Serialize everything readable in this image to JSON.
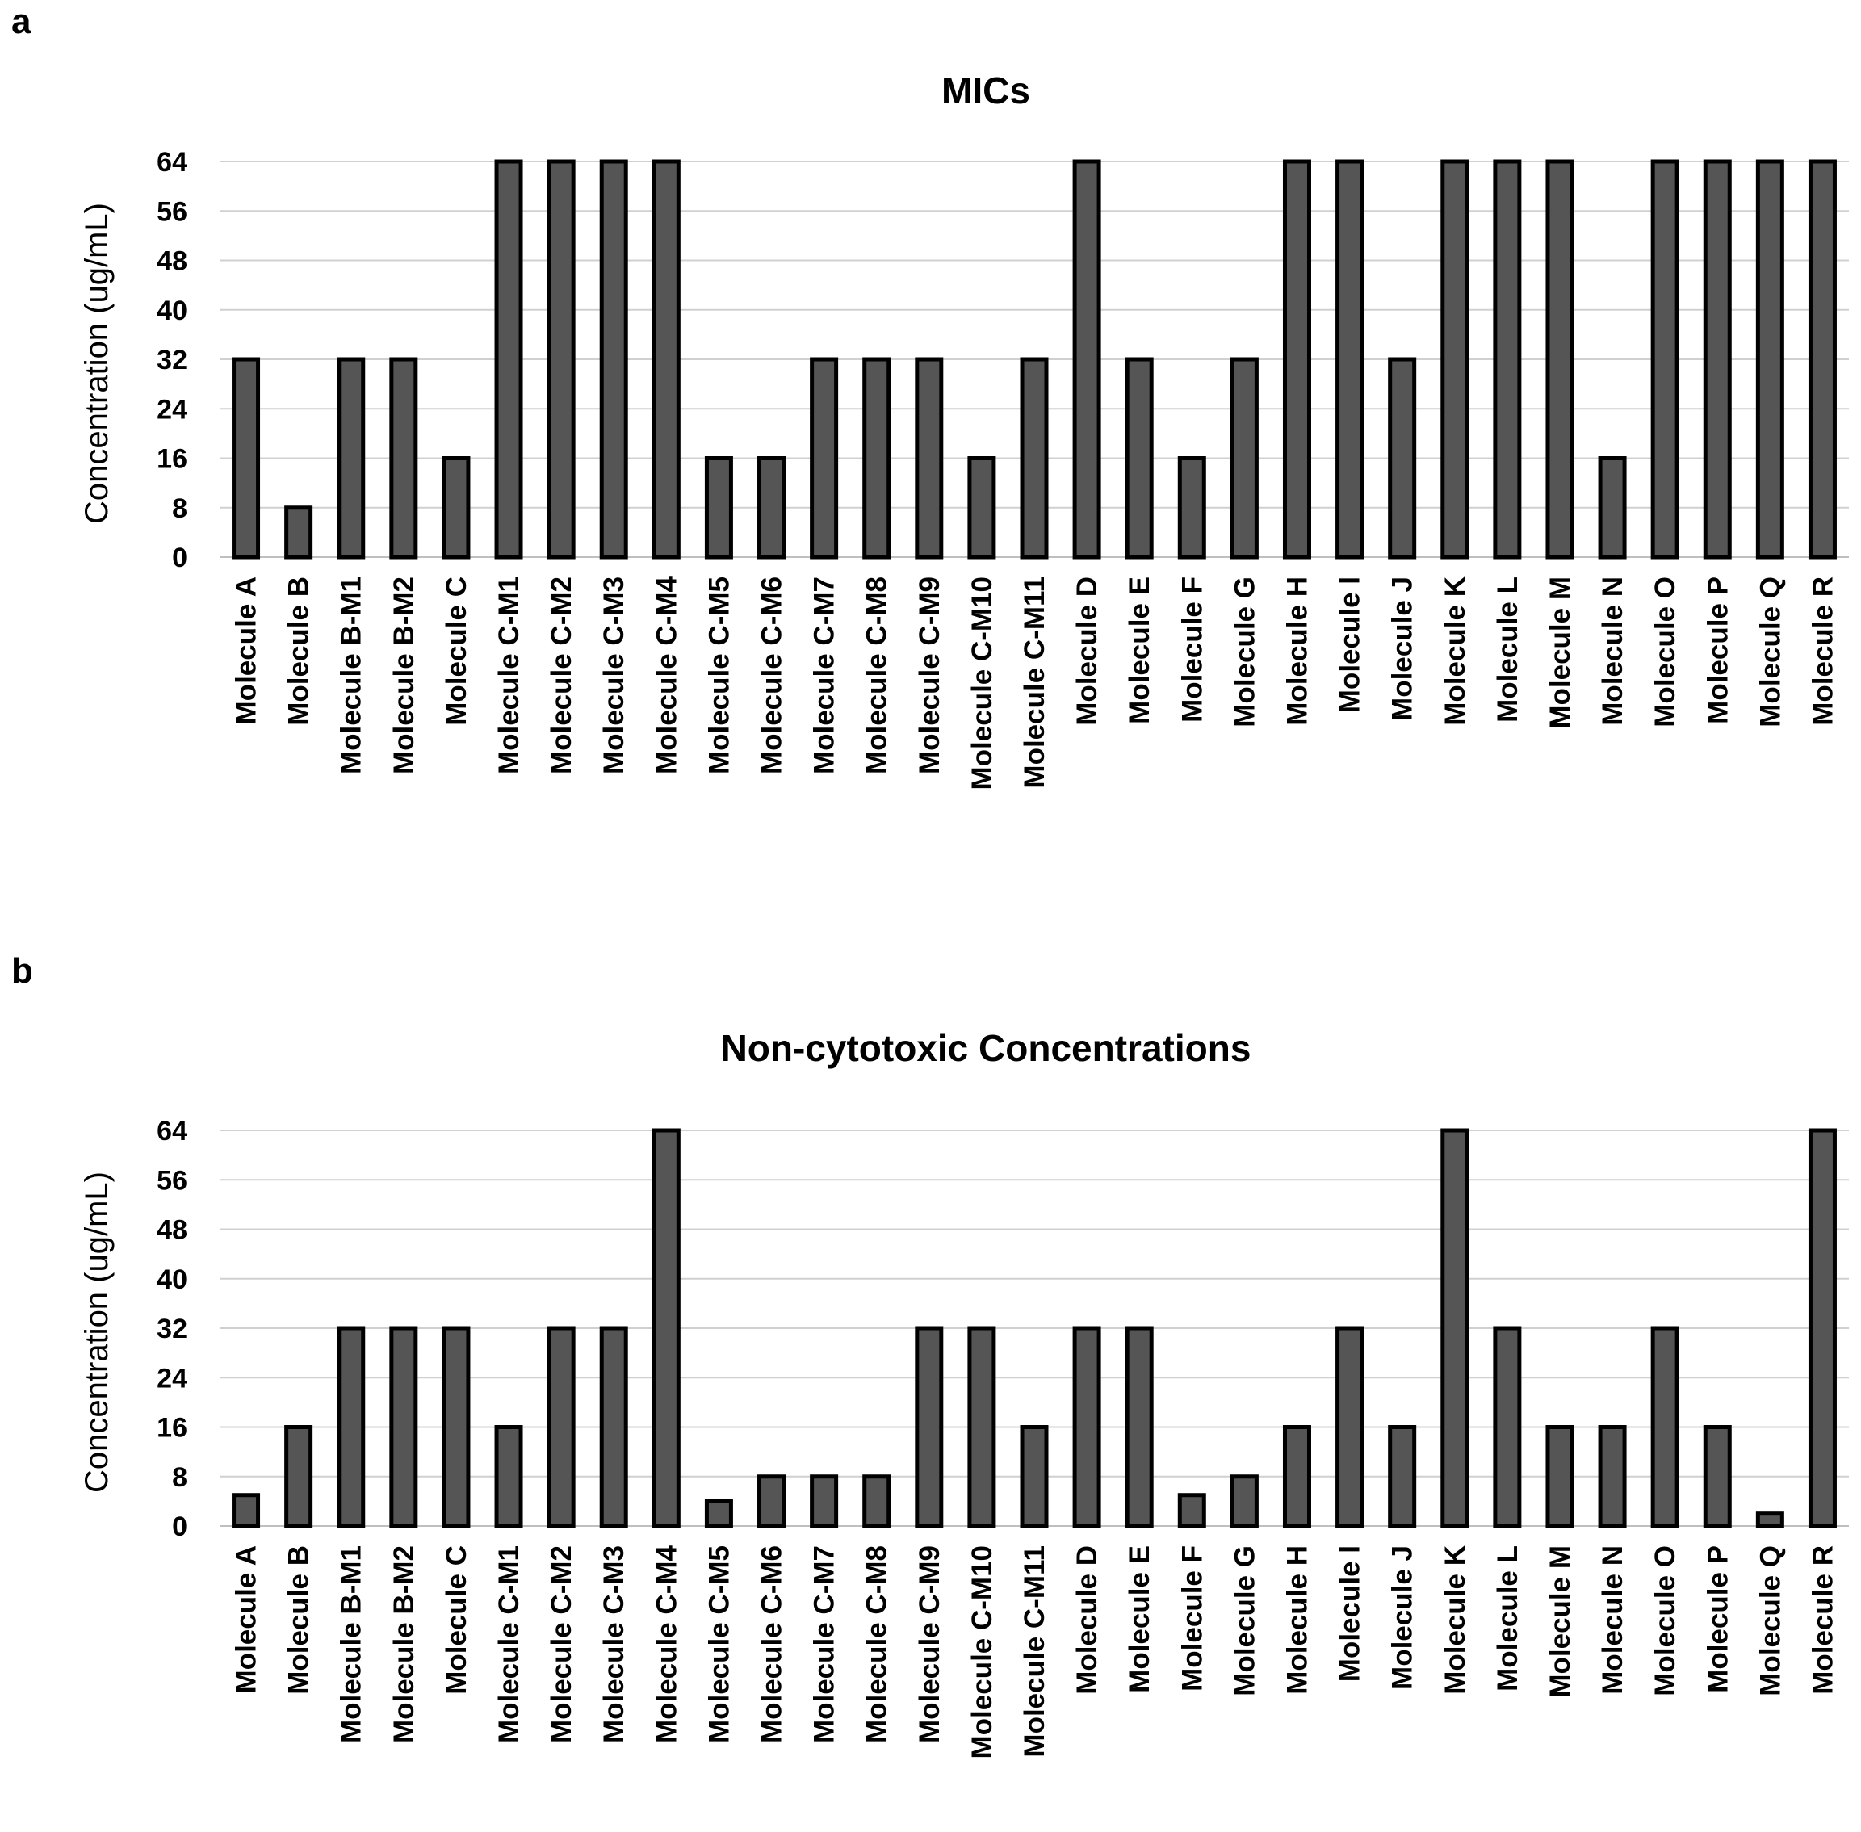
{
  "panels": {
    "a": "a",
    "b": "b"
  },
  "colors": {
    "bar_fill": "#555555",
    "bar_stroke": "#000000",
    "grid": "#d0d0d0"
  },
  "chart_data": [
    {
      "type": "bar",
      "title": "MICs",
      "xlabel": "",
      "ylabel": "Concentration (ug/mL)",
      "ylim": [
        0,
        64
      ],
      "yticks": [
        "0",
        "8",
        "16",
        "24",
        "32",
        "40",
        "48",
        "56",
        "64"
      ],
      "grid": true,
      "categories": [
        "Molecule A",
        "Molecule B",
        "Molecule B-M1",
        "Molecule B-M2",
        "Molecule C",
        "Molecule C-M1",
        "Molecule C-M2",
        "Molecule C-M3",
        "Molecule C-M4",
        "Molecule C-M5",
        "Molecule C-M6",
        "Molecule C-M7",
        "Molecule C-M8",
        "Molecule C-M9",
        "Molecule C-M10",
        "Molecule C-M11",
        "Molecule D",
        "Molecule E",
        "Molecule F",
        "Molecule G",
        "Molecule H",
        "Molecule I",
        "Molecule J",
        "Molecule K",
        "Molecule L",
        "Molecule M",
        "Molecule N",
        "Molecule O",
        "Molecule P",
        "Molecule Q",
        "Molecule R"
      ],
      "values": [
        32,
        8,
        32,
        32,
        16,
        64,
        64,
        64,
        64,
        16,
        16,
        32,
        32,
        32,
        16,
        32,
        64,
        32,
        16,
        32,
        64,
        64,
        32,
        64,
        64,
        64,
        16,
        64,
        64,
        64,
        64
      ]
    },
    {
      "type": "bar",
      "title": "Non-cytotoxic Concentrations",
      "xlabel": "",
      "ylabel": "Concentration (ug/mL)",
      "ylim": [
        0,
        64
      ],
      "yticks": [
        "0",
        "8",
        "16",
        "24",
        "32",
        "40",
        "48",
        "56",
        "64"
      ],
      "grid": true,
      "categories": [
        "Molecule A",
        "Molecule B",
        "Molecule B-M1",
        "Molecule B-M2",
        "Molecule C",
        "Molecule C-M1",
        "Molecule C-M2",
        "Molecule C-M3",
        "Molecule C-M4",
        "Molecule C-M5",
        "Molecule C-M6",
        "Molecule C-M7",
        "Molecule C-M8",
        "Molecule C-M9",
        "Molecule C-M10",
        "Molecule C-M11",
        "Molecule D",
        "Molecule E",
        "Molecule F",
        "Molecule G",
        "Molecule H",
        "Molecule I",
        "Molecule J",
        "Molecule K",
        "Molecule L",
        "Molecule M",
        "Molecule N",
        "Molecule O",
        "Molecule P",
        "Molecule Q",
        "Molecule R"
      ],
      "values": [
        5,
        16,
        32,
        32,
        32,
        16,
        32,
        32,
        64,
        4,
        8,
        8,
        8,
        32,
        32,
        16,
        32,
        32,
        5,
        8,
        16,
        32,
        16,
        64,
        32,
        16,
        16,
        32,
        16,
        2,
        64
      ]
    }
  ]
}
